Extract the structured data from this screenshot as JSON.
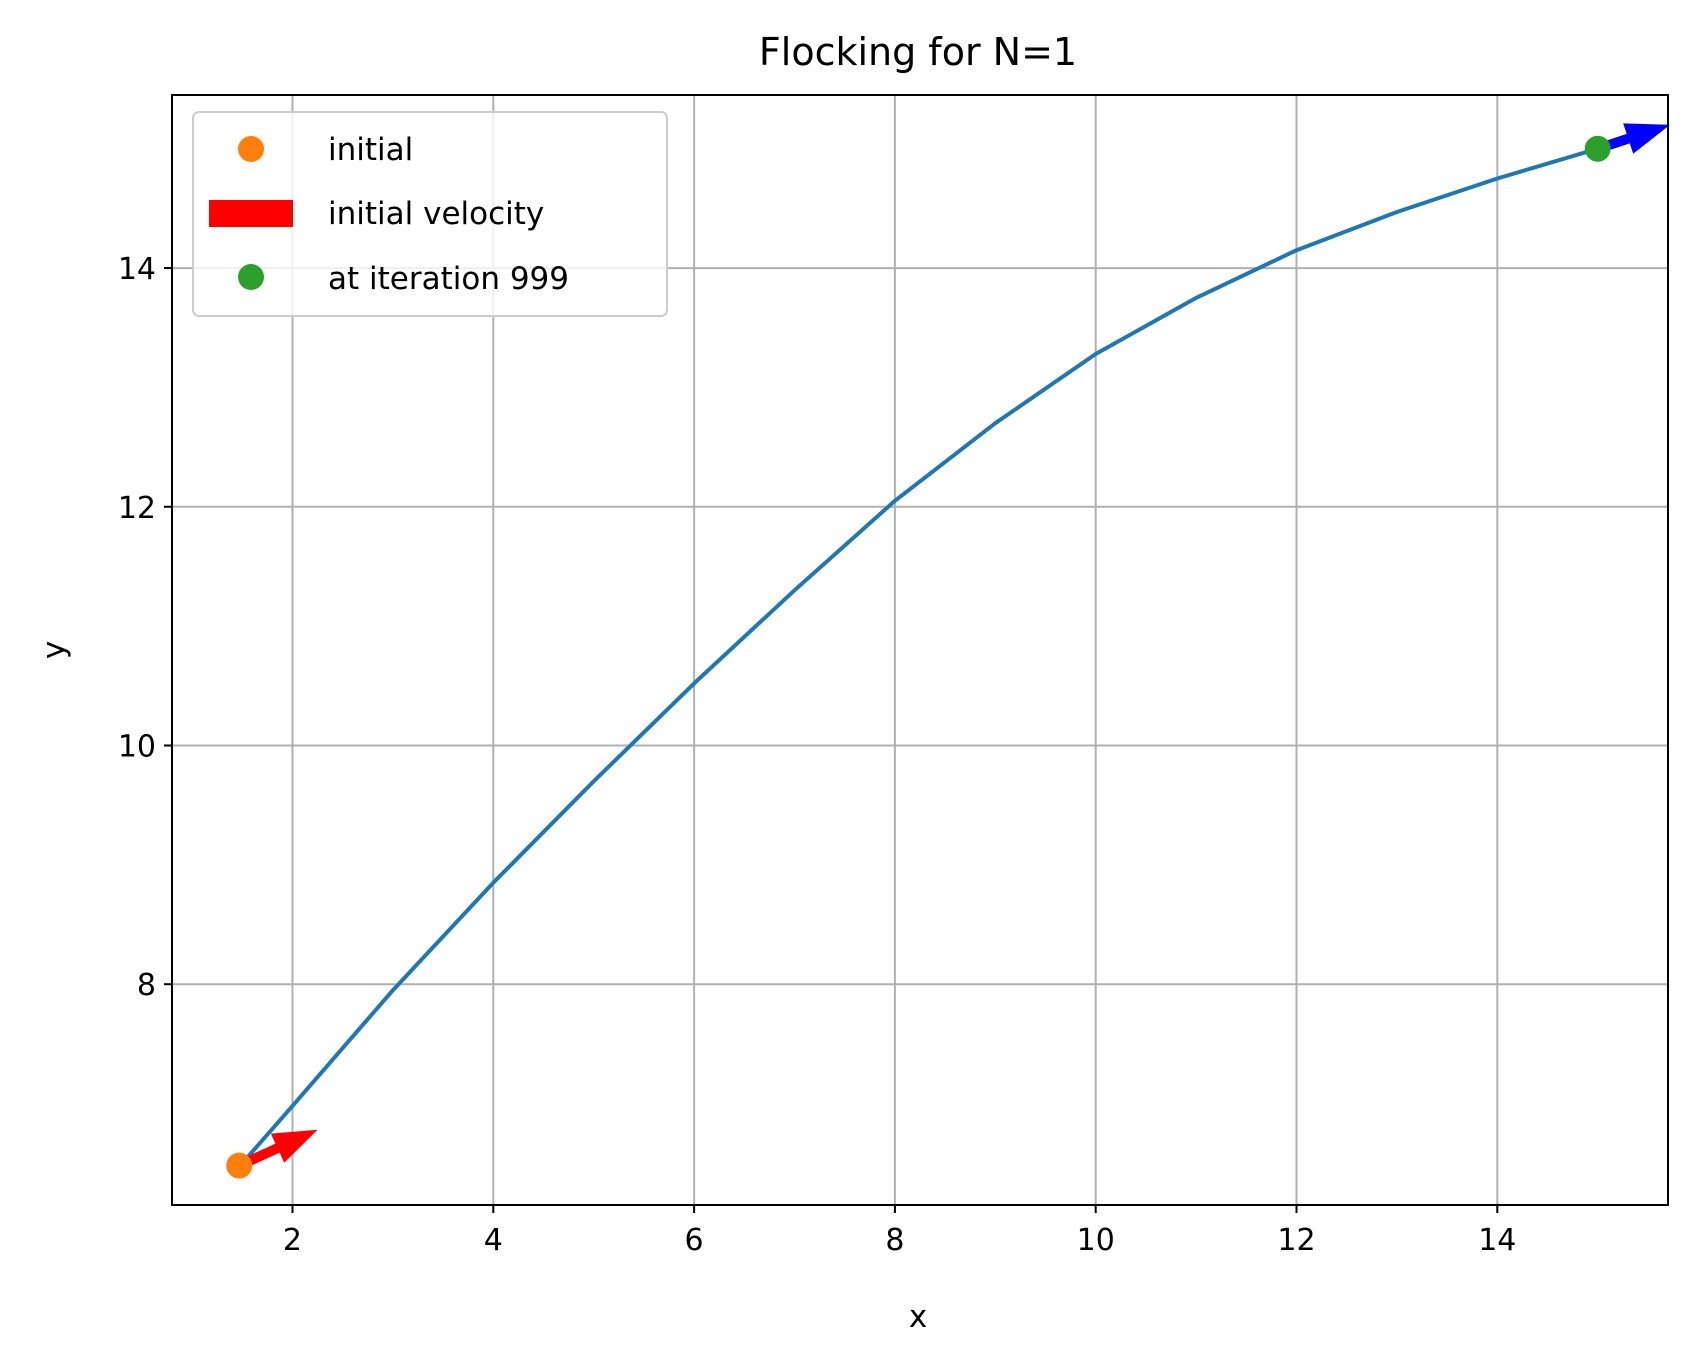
{
  "chart_data": {
    "type": "line",
    "title": "Flocking for N=1",
    "xlabel": "x",
    "ylabel": "y",
    "xlim": [
      0.8,
      15.7
    ],
    "ylim": [
      6.15,
      15.45
    ],
    "xticks": [
      2,
      4,
      6,
      8,
      10,
      12,
      14
    ],
    "yticks": [
      8,
      10,
      12,
      14
    ],
    "grid": true,
    "legend_position": "top-left",
    "colors": {
      "trajectory": "#1f77b4",
      "initial": "#ff7f0e",
      "initial_velocity": "#ff0000",
      "final": "#2ca02c",
      "final_velocity": "#0000ff"
    },
    "series": [
      {
        "kind": "line",
        "x": [
          1.5,
          2.0,
          3.0,
          4.0,
          5.0,
          6.0,
          7.0,
          8.0,
          9.0,
          10.0,
          11.0,
          12.0,
          13.0,
          14.0,
          15.0
        ],
        "y": [
          6.5,
          6.98,
          7.95,
          8.85,
          9.7,
          10.52,
          11.3,
          12.05,
          12.7,
          13.28,
          13.75,
          14.15,
          14.47,
          14.75,
          15.0
        ]
      }
    ],
    "points": [
      {
        "name": "initial",
        "x": 1.47,
        "y": 6.48
      },
      {
        "name": "at iteration 999",
        "x": 15.0,
        "y": 15.0
      }
    ],
    "arrows": [
      {
        "name": "initial velocity",
        "x": 1.47,
        "y": 6.48,
        "dx": 0.78,
        "dy": 0.3
      },
      {
        "name": "final velocity",
        "x": 15.0,
        "y": 15.0,
        "dx": 0.72,
        "dy": 0.2
      }
    ],
    "legend": [
      "initial",
      "initial velocity",
      "at iteration 999"
    ]
  }
}
